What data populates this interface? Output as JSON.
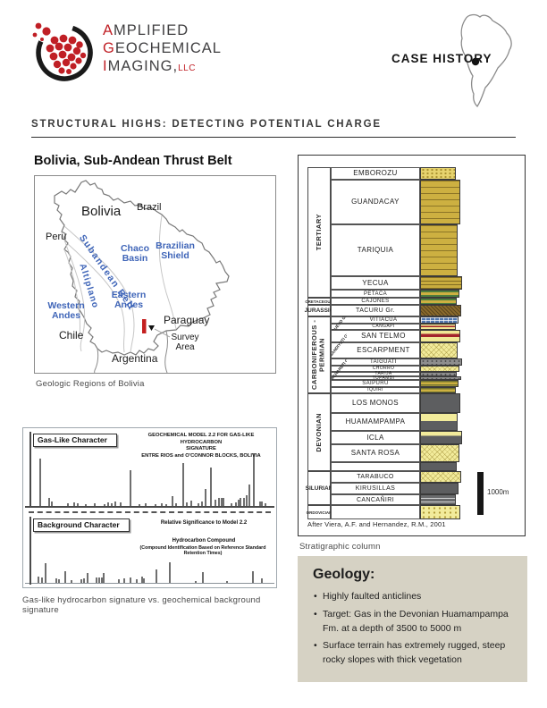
{
  "logo": {
    "l1i": "A",
    "l1r": "MPLIFIED",
    "l2i": "G",
    "l2r": "EOCHEMICAL",
    "l3i": "I",
    "l3r": "MAGING,",
    "l3s": "LLC"
  },
  "case_history_label": "CASE HISTORY",
  "section_title": "STRUCTURAL HIGHS: DETECTING POTENTIAL CHARGE",
  "map_figure": {
    "title": "Bolivia, Sub-Andean Thrust Belt",
    "caption": "Geologic Regions of Bolivia",
    "labels": {
      "bolivia": "Bolivia",
      "brazil": "Brazil",
      "peru": "Peru",
      "chile": "Chile",
      "paraguay": "Paraguay",
      "argentina": "Argentina",
      "chaco": "Chaco Basin",
      "shield": "Brazilian Shield",
      "subandean": "Subandean Belt",
      "altiplano": "Altiplano",
      "eastern": "Eastern Andes",
      "western": "Western Andes",
      "survey": "Survey Area"
    },
    "accent_red": "#c41f1f",
    "label_blue": "#3f65b8"
  },
  "strat_figure": {
    "caption": "Stratigraphic column",
    "attribution": "After Viera, A.F. and Hernandez, R.M., 2001",
    "scale_label": "1000m",
    "rows": [
      {
        "name": "EMBOROZU",
        "h": 14,
        "litho": "sand-dots"
      },
      {
        "name": "GUANDACAY",
        "h": 50,
        "litho": "sandstone"
      },
      {
        "name": "TARIQUIA",
        "h": 58,
        "litho": "sandstone"
      },
      {
        "name": "YECUA",
        "h": 15,
        "litho": "silt"
      },
      {
        "name": "PETACA",
        "h": 9,
        "litho": "green-sand"
      },
      {
        "name": "CAJONES",
        "h": 8,
        "litho": "green-sand"
      },
      {
        "name": "TACURU Gr.",
        "h": 13,
        "litho": "brown-weave"
      },
      {
        "name": "VITIACUA",
        "h": 8,
        "litho": "blue-brick",
        "group": "CUEVO Gr."
      },
      {
        "name": "CANGAPI",
        "h": 7,
        "litho": "red-sand",
        "group": "CUEVO Gr."
      },
      {
        "name": "SAN TELMO",
        "h": 14,
        "litho": "red-sand",
        "group": "MANDIYUTI Gr."
      },
      {
        "name": "ESCARPMENT",
        "h": 18,
        "litho": "pale-cross",
        "group": "MANDIYUTI Gr."
      },
      {
        "name": "TAIGUATI",
        "h": 8,
        "litho": "gray-diamict",
        "group": "MACHARETI Gr."
      },
      {
        "name": "CHORRO",
        "h": 7,
        "litho": "pale-cross",
        "group": "MACHARETI Gr."
      },
      {
        "name": "TARIJA",
        "h": 5,
        "litho": "gray-diamict",
        "group": "MACHARETI Gr."
      },
      {
        "name": "TUPAMBI",
        "h": 4,
        "litho": "gray-diamict",
        "group": "MACHARETI Gr."
      },
      {
        "name": "SAIPURU",
        "h": 8,
        "litho": "green-layers"
      },
      {
        "name": "IQUIRI",
        "h": 7,
        "litho": "green-layers"
      },
      {
        "name": "LOS MONOS",
        "h": 22,
        "litho": "gray-shale"
      },
      {
        "name": "HUAMAMPAMPA",
        "h": 20,
        "litho": "pale-cross-gray"
      },
      {
        "name": "ICLA",
        "h": 15,
        "litho": "gray-shale2"
      },
      {
        "name": "SANTA ROSA",
        "h": 20,
        "litho": "pale-cross"
      },
      {
        "name": "",
        "h": 10,
        "litho": "gray-shale"
      },
      {
        "name": "TARABUCO",
        "h": 13,
        "litho": "pale-cross"
      },
      {
        "name": "KIRUSILLAS",
        "h": 13,
        "litho": "gray-shale"
      },
      {
        "name": "CANCAÑIRI",
        "h": 12,
        "litho": "gray-dash"
      },
      {
        "name": "",
        "h": 16,
        "litho": "pale-squiggle"
      }
    ],
    "periods": [
      {
        "label": "TERTIARY",
        "from": 0,
        "to": 4,
        "rot": true
      },
      {
        "label": "CRETACEOUS",
        "from": 5,
        "to": 5,
        "small": true
      },
      {
        "label": "JURASSIC",
        "from": 6,
        "to": 6
      },
      {
        "label": "CARBONIFEROUS - PERMIAN",
        "from": 7,
        "to": 16,
        "rot": true
      },
      {
        "label": "DEVONIAN",
        "from": 17,
        "to": 21,
        "rot": true
      },
      {
        "label": "SILURIAN",
        "from": 22,
        "to": 24
      },
      {
        "label": "ORDOVICIAN",
        "from": 25,
        "to": 25,
        "small": true
      }
    ],
    "groups": [
      {
        "label": "CUEVO Gr.",
        "from": 7,
        "to": 8
      },
      {
        "label": "MANDIYUTI Gr.",
        "from": 9,
        "to": 10
      },
      {
        "label": "MACHARETI Gr.",
        "from": 11,
        "to": 14
      }
    ]
  },
  "chart_figure": {
    "title_lines": [
      "GEOCHEMICAL MODEL 2.2 FOR GAS-LIKE HYDROCARBON",
      "SIGNATURE",
      "ENTRE RIOS and O'CONNOR BLOCKS, BOLIVIA"
    ],
    "ylabel": "Relative Significance to Model 2.2",
    "xlabel_line1": "Hydrocarbon Compound",
    "xlabel_line2": "(Compound Identification Based on Reference Standard Retention Times)",
    "caption": "Gas-like hydrocarbon signature vs. geochemical background signature"
  },
  "chart_data": {
    "type": "bar",
    "title": "GEOCHEMICAL MODEL 2.2 FOR GAS-LIKE HYDROCARBON SIGNATURE — ENTRE RIOS and O'CONNOR BLOCKS, BOLIVIA",
    "ylabel": "Relative Significance to Model 2.2",
    "xlabel": "Hydrocarbon Compound (Compound Identification Based on Reference Standard Retention Times)",
    "ylim": [
      0,
      1
    ],
    "panels": [
      {
        "name": "Gas-Like Character",
        "bars": [
          [
            0.022,
            0.85
          ],
          [
            0.062,
            0.14
          ],
          [
            0.072,
            0.08
          ],
          [
            0.141,
            0.05
          ],
          [
            0.167,
            0.06
          ],
          [
            0.181,
            0.05
          ],
          [
            0.217,
            0.03
          ],
          [
            0.254,
            0.05
          ],
          [
            0.297,
            0.03
          ],
          [
            0.312,
            0.06
          ],
          [
            0.326,
            0.05
          ],
          [
            0.341,
            0.08
          ],
          [
            0.362,
            0.06
          ],
          [
            0.406,
            0.65
          ],
          [
            0.442,
            0.03
          ],
          [
            0.471,
            0.05
          ],
          [
            0.511,
            0.03
          ],
          [
            0.536,
            0.05
          ],
          [
            0.558,
            0.03
          ],
          [
            0.583,
            0.18
          ],
          [
            0.598,
            0.05
          ],
          [
            0.627,
            0.77
          ],
          [
            0.645,
            0.06
          ],
          [
            0.663,
            0.09
          ],
          [
            0.692,
            0.05
          ],
          [
            0.71,
            0.08
          ],
          [
            0.725,
            0.31
          ],
          [
            0.746,
            0.69
          ],
          [
            0.764,
            0.12
          ],
          [
            0.779,
            0.15
          ],
          [
            0.79,
            0.15
          ],
          [
            0.801,
            0.14
          ],
          [
            0.833,
            0.05
          ],
          [
            0.851,
            0.06
          ],
          [
            0.862,
            0.11
          ],
          [
            0.873,
            0.15
          ],
          [
            0.888,
            0.14
          ],
          [
            0.899,
            0.2
          ],
          [
            0.909,
            0.38
          ],
          [
            0.928,
            0.95
          ],
          [
            0.953,
            0.08
          ],
          [
            0.964,
            0.08
          ],
          [
            0.978,
            0.05
          ]
        ]
      },
      {
        "name": "Background Character",
        "bars": [
          [
            0.014,
            0.15
          ],
          [
            0.029,
            0.12
          ],
          [
            0.047,
            0.46
          ],
          [
            0.091,
            0.11
          ],
          [
            0.101,
            0.09
          ],
          [
            0.13,
            0.28
          ],
          [
            0.156,
            0.06
          ],
          [
            0.196,
            0.08
          ],
          [
            0.21,
            0.11
          ],
          [
            0.225,
            0.22
          ],
          [
            0.261,
            0.12
          ],
          [
            0.272,
            0.12
          ],
          [
            0.283,
            0.12
          ],
          [
            0.293,
            0.23
          ],
          [
            0.355,
            0.08
          ],
          [
            0.38,
            0.11
          ],
          [
            0.406,
            0.12
          ],
          [
            0.431,
            0.09
          ],
          [
            0.453,
            0.14
          ],
          [
            0.464,
            0.11
          ],
          [
            0.514,
            0.31
          ],
          [
            0.572,
            0.48
          ],
          [
            0.681,
            0.05
          ],
          [
            0.714,
            0.26
          ],
          [
            0.815,
            0.05
          ],
          [
            0.924,
            0.28
          ],
          [
            0.964,
            0.11
          ]
        ]
      }
    ]
  },
  "geology": {
    "title": "Geology:",
    "bullets": [
      "Highly faulted anticlines",
      "Target: Gas in the Devonian Huamampampa Fm. at a depth of 3500 to 5000 m",
      "Surface terrain has extremely rugged, steep rocky slopes with thick vegetation"
    ],
    "box_bg": "#d6d2c4"
  }
}
